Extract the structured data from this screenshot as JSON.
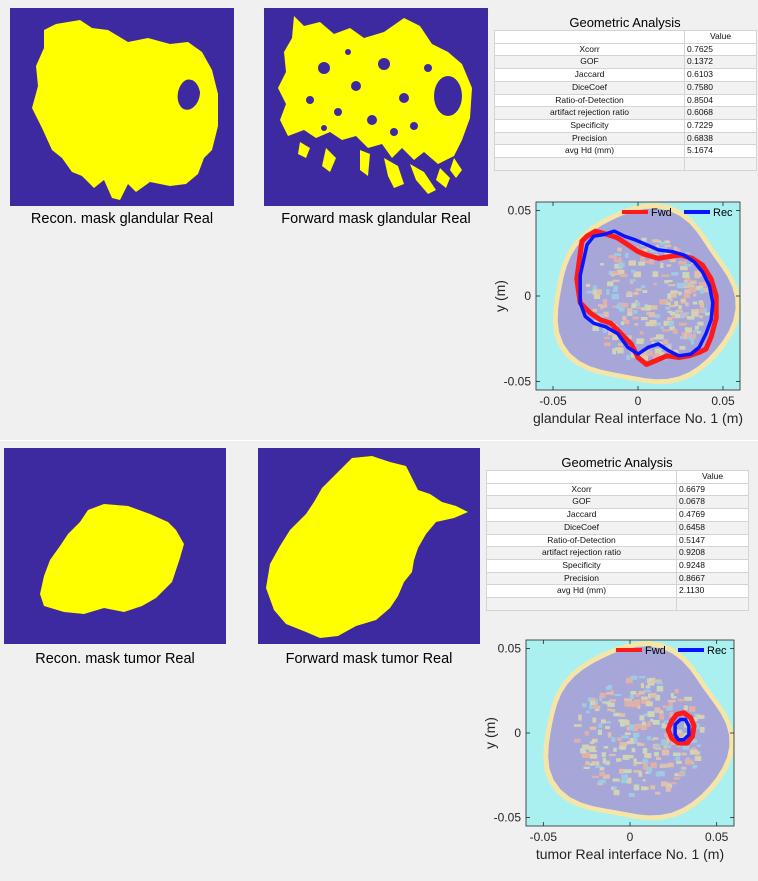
{
  "colors": {
    "mask_background": "#3d2aa0",
    "mask_foreground": "#ffff00",
    "fwd_line": "#ff1a1a",
    "rec_line": "#0a14ff",
    "plot_bg": "#aaf0f0",
    "tissue_fill": "#a6a6d8",
    "skin_ring": "#f5e6a8"
  },
  "sections": [
    {
      "recon_caption": "Recon. mask glandular Real",
      "forward_caption": "Forward mask glandular Real",
      "table": {
        "title": "Geometric Analysis",
        "header": "Value",
        "rows": [
          {
            "name": "Xcorr",
            "value": "0.7625"
          },
          {
            "name": "GOF",
            "value": "0.1372"
          },
          {
            "name": "Jaccard",
            "value": "0.6103"
          },
          {
            "name": "DiceCoef",
            "value": "0.7580"
          },
          {
            "name": "Ratio-of-Detection",
            "value": "0.8504"
          },
          {
            "name": "artifact rejection ratio",
            "value": "0.6068"
          },
          {
            "name": "Specificity",
            "value": "0.7229"
          },
          {
            "name": "Precision",
            "value": "0.6838"
          },
          {
            "name": "avg Hd (mm)",
            "value": "5.1674"
          }
        ]
      },
      "chart_data": {
        "type": "line",
        "xlabel": "glandular Real interface No. 1 (m)",
        "ylabel": "y (m)",
        "xlim": [
          -0.06,
          0.06
        ],
        "ylim": [
          -0.055,
          0.055
        ],
        "xticks": [
          -0.05,
          0,
          0.05
        ],
        "xtick_labels": [
          "-0.05",
          "0",
          "0.05"
        ],
        "yticks": [
          -0.05,
          0,
          0.05
        ],
        "ytick_labels": [
          "-0.05",
          "0",
          "0.05"
        ],
        "legend_position": "top-right",
        "series": [
          {
            "name": "Fwd",
            "color": "#ff1a1a",
            "x": [
              -0.033,
              -0.03,
              -0.025,
              -0.018,
              -0.012,
              -0.006,
              0.0,
              0.005,
              0.012,
              0.018,
              0.025,
              0.032,
              0.038,
              0.043,
              0.046,
              0.046,
              0.043,
              0.04,
              0.036,
              0.03,
              0.024,
              0.017,
              0.01,
              0.005,
              0.0,
              -0.004,
              -0.01,
              -0.016,
              -0.022,
              -0.028,
              -0.034,
              -0.036,
              -0.033
            ],
            "y": [
              0.032,
              0.035,
              0.038,
              0.036,
              0.034,
              0.03,
              0.026,
              0.024,
              0.022,
              0.023,
              0.024,
              0.022,
              0.018,
              0.01,
              0.0,
              -0.013,
              -0.024,
              -0.031,
              -0.033,
              -0.035,
              -0.036,
              -0.035,
              -0.038,
              -0.04,
              -0.036,
              -0.028,
              -0.022,
              -0.016,
              -0.014,
              -0.01,
              -0.004,
              0.01,
              0.032
            ]
          },
          {
            "name": "Rec",
            "color": "#0a14ff",
            "x": [
              -0.03,
              -0.026,
              -0.02,
              -0.014,
              -0.008,
              -0.002,
              0.005,
              0.012,
              0.02,
              0.027,
              0.033,
              0.038,
              0.042,
              0.044,
              0.043,
              0.04,
              0.036,
              0.031,
              0.024,
              0.018,
              0.012,
              0.006,
              0.0,
              -0.006,
              -0.012,
              -0.019,
              -0.026,
              -0.031,
              -0.034,
              -0.034,
              -0.03
            ],
            "y": [
              0.03,
              0.035,
              0.036,
              0.038,
              0.035,
              0.033,
              0.03,
              0.027,
              0.026,
              0.024,
              0.02,
              0.014,
              0.006,
              -0.004,
              -0.014,
              -0.022,
              -0.03,
              -0.034,
              -0.035,
              -0.032,
              -0.028,
              -0.03,
              -0.034,
              -0.03,
              -0.022,
              -0.018,
              -0.016,
              -0.012,
              -0.004,
              0.012,
              0.03
            ]
          }
        ]
      }
    },
    {
      "recon_caption": "Recon. mask tumor Real",
      "forward_caption": "Forward mask tumor Real",
      "table": {
        "title": "Geometric Analysis",
        "header": "Value",
        "rows": [
          {
            "name": "Xcorr",
            "value": "0.6679"
          },
          {
            "name": "GOF",
            "value": "0.0678"
          },
          {
            "name": "Jaccard",
            "value": "0.4769"
          },
          {
            "name": "DiceCoef",
            "value": "0.6458"
          },
          {
            "name": "Ratio-of-Detection",
            "value": "0.5147"
          },
          {
            "name": "artifact rejection ratio",
            "value": "0.9208"
          },
          {
            "name": "Specificity",
            "value": "0.9248"
          },
          {
            "name": "Precision",
            "value": "0.8667"
          },
          {
            "name": "avg Hd (mm)",
            "value": "2.1130"
          }
        ]
      },
      "chart_data": {
        "type": "line",
        "xlabel": "tumor Real interface No. 1 (m)",
        "ylabel": "y (m)",
        "xlim": [
          -0.06,
          0.06
        ],
        "ylim": [
          -0.055,
          0.055
        ],
        "xticks": [
          -0.05,
          0,
          0.05
        ],
        "xtick_labels": [
          "-0.05",
          "0",
          "0.05"
        ],
        "yticks": [
          -0.05,
          0,
          0.05
        ],
        "ytick_labels": [
          "-0.05",
          "0",
          "0.05"
        ],
        "legend_position": "top-right",
        "series": [
          {
            "name": "Fwd",
            "color": "#ff1a1a",
            "x": [
              0.024,
              0.027,
              0.031,
              0.035,
              0.037,
              0.036,
              0.033,
              0.028,
              0.024,
              0.022,
              0.024
            ],
            "y": [
              0.007,
              0.011,
              0.012,
              0.009,
              0.004,
              -0.002,
              -0.006,
              -0.006,
              -0.003,
              0.002,
              0.007
            ]
          },
          {
            "name": "Rec",
            "color": "#0a14ff",
            "x": [
              0.026,
              0.029,
              0.032,
              0.034,
              0.034,
              0.031,
              0.028,
              0.026,
              0.026
            ],
            "y": [
              0.005,
              0.008,
              0.008,
              0.004,
              -0.001,
              -0.004,
              -0.004,
              -0.001,
              0.005
            ]
          }
        ]
      }
    }
  ]
}
